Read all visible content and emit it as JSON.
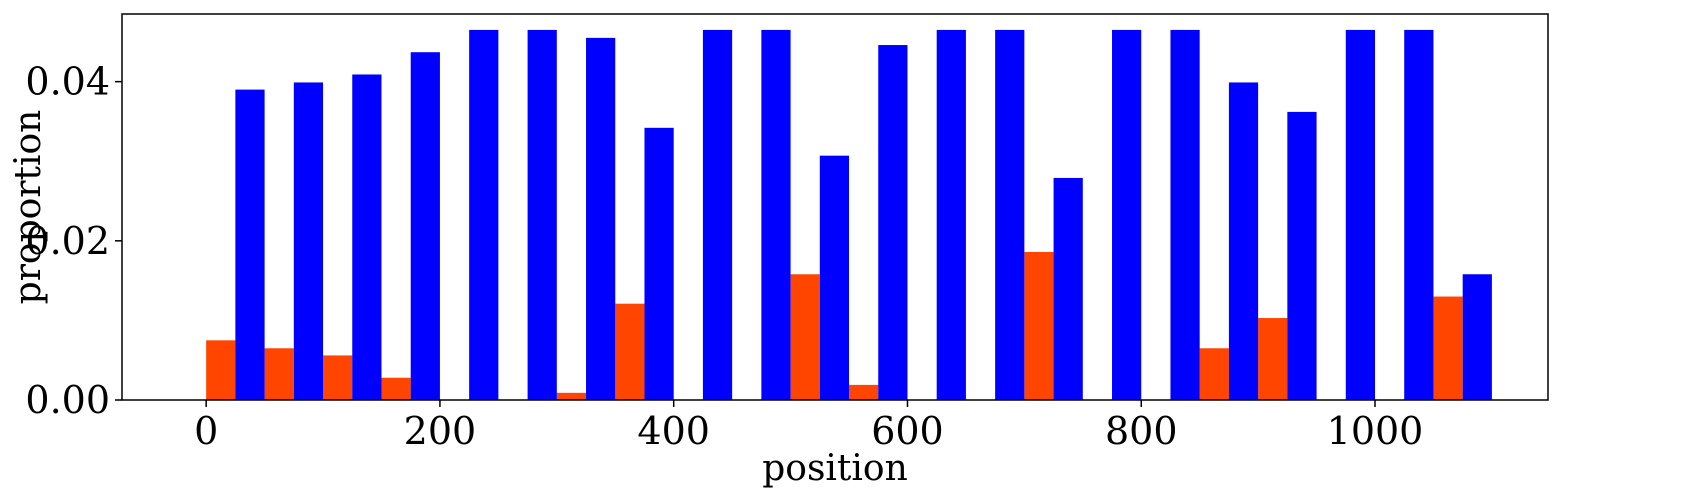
{
  "chart_data": {
    "type": "bar",
    "xlabel": "position",
    "ylabel": "proportion",
    "xlim": [
      -72,
      1148
    ],
    "ylim": [
      0,
      0.0485
    ],
    "xticks": [
      0,
      200,
      400,
      600,
      800,
      1000
    ],
    "xtick_labels": [
      "0",
      "200",
      "400",
      "600",
      "800",
      "1000"
    ],
    "yticks": [
      0,
      0.02,
      0.04
    ],
    "ytick_labels": [
      "0.00",
      "0.02",
      "0.04"
    ],
    "bar_width": 25,
    "grid": false,
    "series": [
      {
        "color": "#ff4500",
        "x": [
          0,
          50,
          100,
          150,
          200,
          250,
          300,
          350,
          400,
          450,
          500,
          550,
          600,
          650,
          700,
          750,
          800,
          850,
          900,
          950,
          1000,
          1050
        ],
        "values": [
          0.0075,
          0.0065,
          0.0056,
          0.0028,
          0,
          0,
          0.0009,
          0.0121,
          0,
          0,
          0.0158,
          0.0019,
          0,
          0,
          0.0186,
          0,
          0,
          0.0065,
          0.0103,
          0,
          0,
          0.013
        ]
      },
      {
        "color": "#0000ff",
        "x": [
          25,
          75,
          125,
          175,
          225,
          275,
          325,
          375,
          425,
          475,
          525,
          575,
          625,
          675,
          725,
          775,
          825,
          875,
          925,
          975,
          1025,
          1075
        ],
        "values": [
          0.039,
          0.0399,
          0.0409,
          0.0437,
          0.0465,
          0.0465,
          0.0455,
          0.0342,
          0.0465,
          0.0465,
          0.0307,
          0.0446,
          0.0465,
          0.0465,
          0.0279,
          0.0465,
          0.0465,
          0.0399,
          0.0362,
          0.0465,
          0.0465,
          0.0158
        ]
      }
    ]
  }
}
